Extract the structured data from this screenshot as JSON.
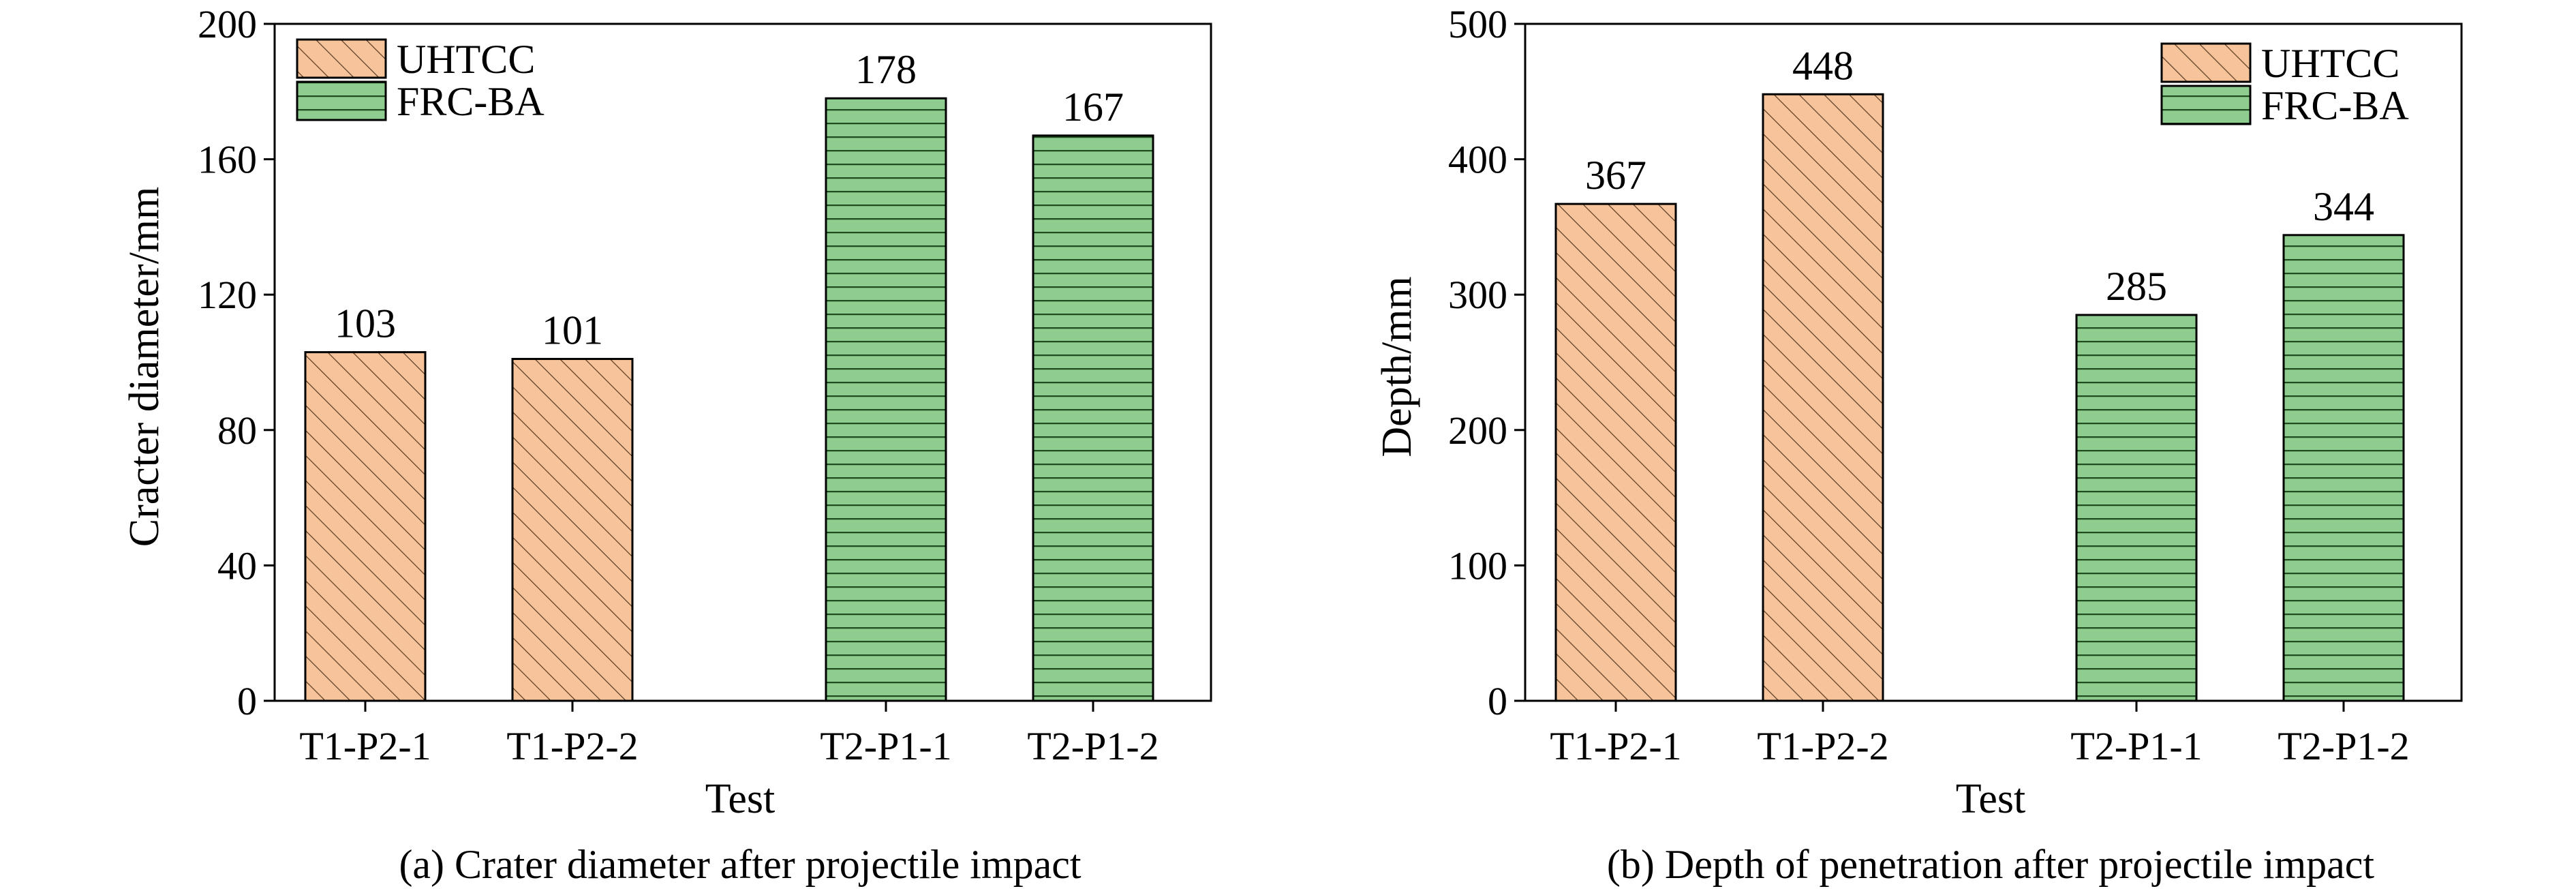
{
  "colors": {
    "UHTCC_fill": "#f6c39a",
    "FRCBA_fill": "#8fcc8f",
    "UHTCC_hatch": "#5a3a20",
    "FRCBA_hatch": "#1f4d1f",
    "axis": "#000000"
  },
  "chart_data": [
    {
      "id": "a",
      "type": "bar",
      "caption": "(a) Crater diameter after projectile impact",
      "xlabel": "Test",
      "ylabel": "Cracter diameter/mm",
      "ylim": [
        0,
        200
      ],
      "yticks": [
        0,
        40,
        80,
        120,
        160,
        200
      ],
      "categories": [
        "T1-P2-1",
        "T1-P2-2",
        "T2-P1-1",
        "T2-P1-2"
      ],
      "series": [
        {
          "name": "UHTCC",
          "values": [
            103,
            101,
            null,
            null
          ],
          "labels": [
            "103",
            "101",
            "",
            ""
          ]
        },
        {
          "name": "FRC-BA",
          "values": [
            null,
            null,
            178,
            167
          ],
          "labels": [
            "",
            "",
            "178",
            "167"
          ]
        }
      ],
      "legend_position": "top-left"
    },
    {
      "id": "b",
      "type": "bar",
      "caption": "(b) Depth of penetration after projectile impact",
      "xlabel": "Test",
      "ylabel": "Depth/mm",
      "ylim": [
        0,
        500
      ],
      "yticks": [
        0,
        100,
        200,
        300,
        400,
        500
      ],
      "categories": [
        "T1-P2-1",
        "T1-P2-2",
        "T2-P1-1",
        "T2-P1-2"
      ],
      "series": [
        {
          "name": "UHTCC",
          "values": [
            367,
            448,
            null,
            null
          ],
          "labels": [
            "367",
            "448",
            "",
            ""
          ]
        },
        {
          "name": "FRC-BA",
          "values": [
            null,
            null,
            285,
            344
          ],
          "labels": [
            "",
            "",
            "285",
            "344"
          ]
        }
      ],
      "legend_position": "top-right"
    }
  ]
}
